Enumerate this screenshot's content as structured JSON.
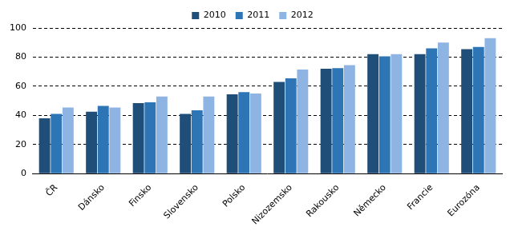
{
  "chart_data": {
    "type": "bar",
    "categories": [
      "ČR",
      "Dánsko",
      "Finsko",
      "Slovensko",
      "Polsko",
      "Nizozemsko",
      "Rakousko",
      "Německo",
      "Francie",
      "Eurozóna"
    ],
    "series": [
      {
        "name": "2010",
        "color": "#1f4e79",
        "values": [
          38,
          42.5,
          48.5,
          41,
          54.5,
          63,
          72,
          82,
          82,
          85.5
        ]
      },
      {
        "name": "2011",
        "color": "#2e75b6",
        "values": [
          41,
          46.5,
          49,
          43.5,
          56,
          65.5,
          72.5,
          80.5,
          86,
          87
        ]
      },
      {
        "name": "2012",
        "color": "#8db4e2",
        "values": [
          45.5,
          45.5,
          53,
          53,
          55,
          71.5,
          74.5,
          82,
          90,
          93
        ]
      }
    ],
    "ylim": [
      0,
      100
    ],
    "yticks": [
      0,
      20,
      40,
      60,
      80,
      100
    ],
    "grid": true,
    "legend": "top"
  }
}
